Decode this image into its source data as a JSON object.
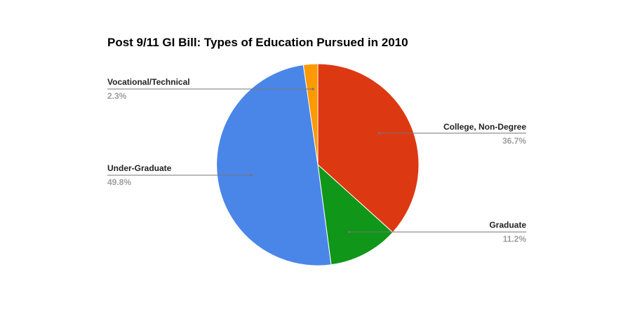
{
  "chart_data": {
    "type": "pie",
    "title": "Post 9/11 GI Bill: Types of Education Pursued in 2010",
    "slices": [
      {
        "label": "College, Non-Degree",
        "value": 36.7,
        "display": "36.7%",
        "color": "#dc3912"
      },
      {
        "label": "Graduate",
        "value": 11.2,
        "display": "11.2%",
        "color": "#109618"
      },
      {
        "label": "Under-Graduate",
        "value": 49.8,
        "display": "49.8%",
        "color": "#4a86e8"
      },
      {
        "label": "Vocational/Technical",
        "value": 2.3,
        "display": "2.3%",
        "color": "#ff9900"
      }
    ]
  }
}
